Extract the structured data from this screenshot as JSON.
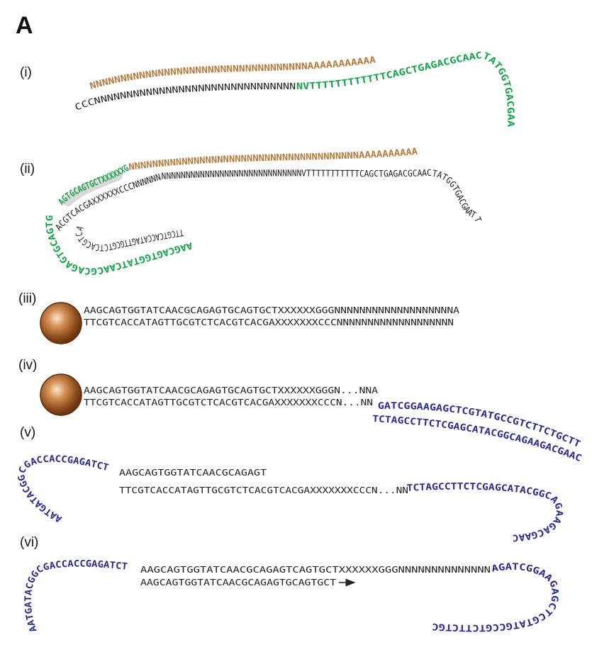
{
  "panel_label": "A",
  "steps": [
    "(i)",
    "(ii)",
    "(iii)",
    "(iv)",
    "(v)",
    "(vi)"
  ],
  "colors": {
    "poly_n_strand": "#b87a3e",
    "primer": "#17a24a",
    "adapter": "#2b2a8f",
    "plain": "#222222",
    "bead": "#8a4a1c"
  },
  "s1": {
    "top_brown": "NNNNNNNNNNNNNNNNNNNNNNNNNNNNNNNNNNNAAAAAAAAAAA",
    "bottom_dark": "CCCNNNNNNNNNNNNNNNNNNNNNNNNNNNNNNN",
    "bottom_green": "NVTTTTTTTTTTTTCAGCTGAGACGCAACTATGGTGACGAATT"
  },
  "s2": {
    "green_top": "AGTGCAGTGCTXXXXXXGGG",
    "top_brown": "NNNNNNNNNNNNNNNNNNNNNNNNNNNNNNNNNNNNNNNAAAAAAAAAA",
    "middle_dark": "ACGTCACGAXXXXXXCCCNNNNNNNNNNNNNNNNNNNNNNNNNNNNNNNNNNNVTTTTTTTTTTTCAGCTGAGACGCAACTATGGTGACGAATT",
    "green_lower": "AAGCAGTGGTATCAACGCAGAGTGCAGTG",
    "dark_lower": "TTCGTCACCATAGTTGCGTCTCACGTCACG"
  },
  "s3": {
    "top": "AAGCAGTGGTATCAACGCAGAGTGCAGTGCTXXXXXXGGGNNNNNNNNNNNNNNNNNNNA",
    "bottom": "TTCGTCACCATAGTTGCGTCTCACGTCACGAXXXXXXXCCCNNNNNNNNNNNNNNNNNNN"
  },
  "s4": {
    "top_dark": "AAGCAGTGGTATCAACGCAGAGTGCAGTGCTXXXXXXGGGN...NNA",
    "top_blue": "GATCGGAAGAGCTCGTATGCCGTCTTCTGCTTG",
    "bottom_dark": "TTCGTCACCATAGTTGCGTCTCACGTCACGAXXXXXXXCCCN...NN",
    "bottom_blue": "TCTAGCCTTCTCGAGCATACGGCAGAAGACGAAC"
  },
  "s5": {
    "left_blue": "AATGATACGGCGACCACCGAGATCT",
    "top_dark": "AAGCAGTGGTATCAACGCAGAGT",
    "bottom_dark": "TTCGTCACCATAGTTGCGTCTCACGTCACGAXXXXXXXCCCN...NN",
    "bottom_blue": "TCTAGCCTTCTCGAGCATACGGCAGAAGACGAAC"
  },
  "s6": {
    "left_blue": "AATGATACGGCGACCACCGAGATCT",
    "top_dark": "AAGCAGTGGTATCAACGCAGAGTCAGTGCTXXXXXXGGGNNNNNNNNNNNNNN",
    "top_blue": "AGATCGGAAGAGCTCGTATGCCGTCTTCTGCTTG",
    "primer_dark": "AAGCAGTGGTATCAACGCAGAGTGCAGTGCT"
  }
}
